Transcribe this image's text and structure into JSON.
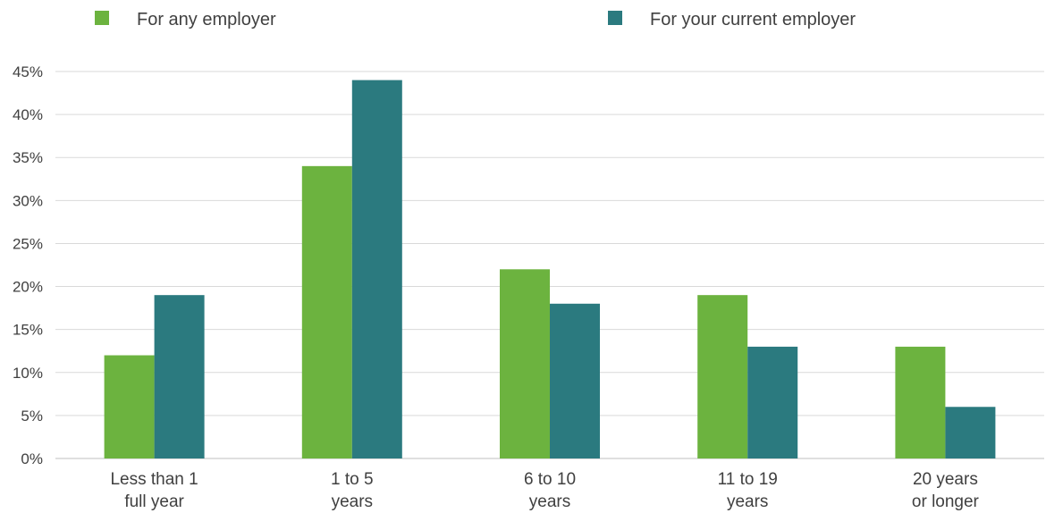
{
  "chart_data": {
    "type": "bar",
    "title": "",
    "xlabel": "",
    "ylabel": "",
    "categories": [
      [
        "Less than 1",
        "full year"
      ],
      [
        "1 to 5",
        "years"
      ],
      [
        "6 to 10",
        "years"
      ],
      [
        "11 to 19",
        "years"
      ],
      [
        "20 years",
        "or longer"
      ]
    ],
    "series": [
      {
        "name": "For any employer",
        "color": "#6cb33f",
        "values": [
          12,
          34,
          22,
          19,
          13
        ]
      },
      {
        "name": "For your current employer",
        "color": "#2b7a7f",
        "values": [
          19,
          44,
          18,
          13,
          6
        ]
      }
    ],
    "ylim": [
      0,
      45
    ],
    "yticks": [
      0,
      5,
      10,
      15,
      20,
      25,
      30,
      35,
      40,
      45
    ],
    "ytick_format": "percent",
    "grid": true,
    "legend_position": "top"
  }
}
